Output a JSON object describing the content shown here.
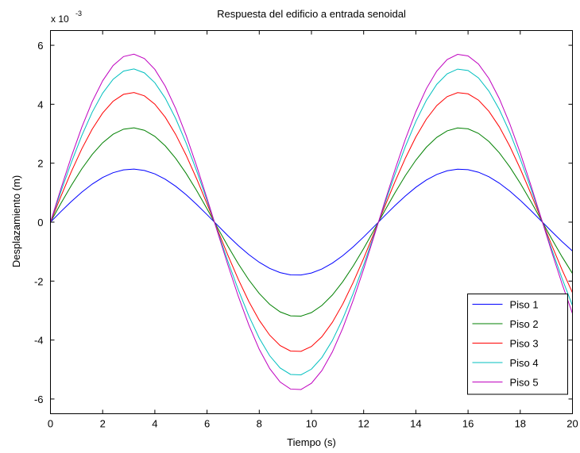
{
  "chart_data": {
    "type": "line",
    "title": "Respuesta del edificio a entrada senoidal",
    "xlabel": "Tiempo (s)",
    "ylabel": "Desplazamiento (m)",
    "y_scale_base": "x 10",
    "y_scale_exponent": "-3",
    "xlim": [
      0,
      20
    ],
    "ylim": [
      -6.5,
      6.5
    ],
    "xticks": [
      0,
      2,
      4,
      6,
      8,
      10,
      12,
      14,
      16,
      18,
      20
    ],
    "yticks": [
      -6,
      -4,
      -2,
      0,
      2,
      4,
      6
    ],
    "grid": false,
    "legend_position": "bottom-right",
    "x_step": 0.4,
    "angular_frequency": 0.5,
    "series": [
      {
        "name": "Piso 1",
        "color": "#0000ff",
        "amplitude": 1.8
      },
      {
        "name": "Piso 2",
        "color": "#008000",
        "amplitude": 3.2
      },
      {
        "name": "Piso 3",
        "color": "#ff0000",
        "amplitude": 4.4
      },
      {
        "name": "Piso 4",
        "color": "#00bfbf",
        "amplitude": 5.2
      },
      {
        "name": "Piso 5",
        "color": "#bf00bf",
        "amplitude": 5.7
      }
    ]
  }
}
